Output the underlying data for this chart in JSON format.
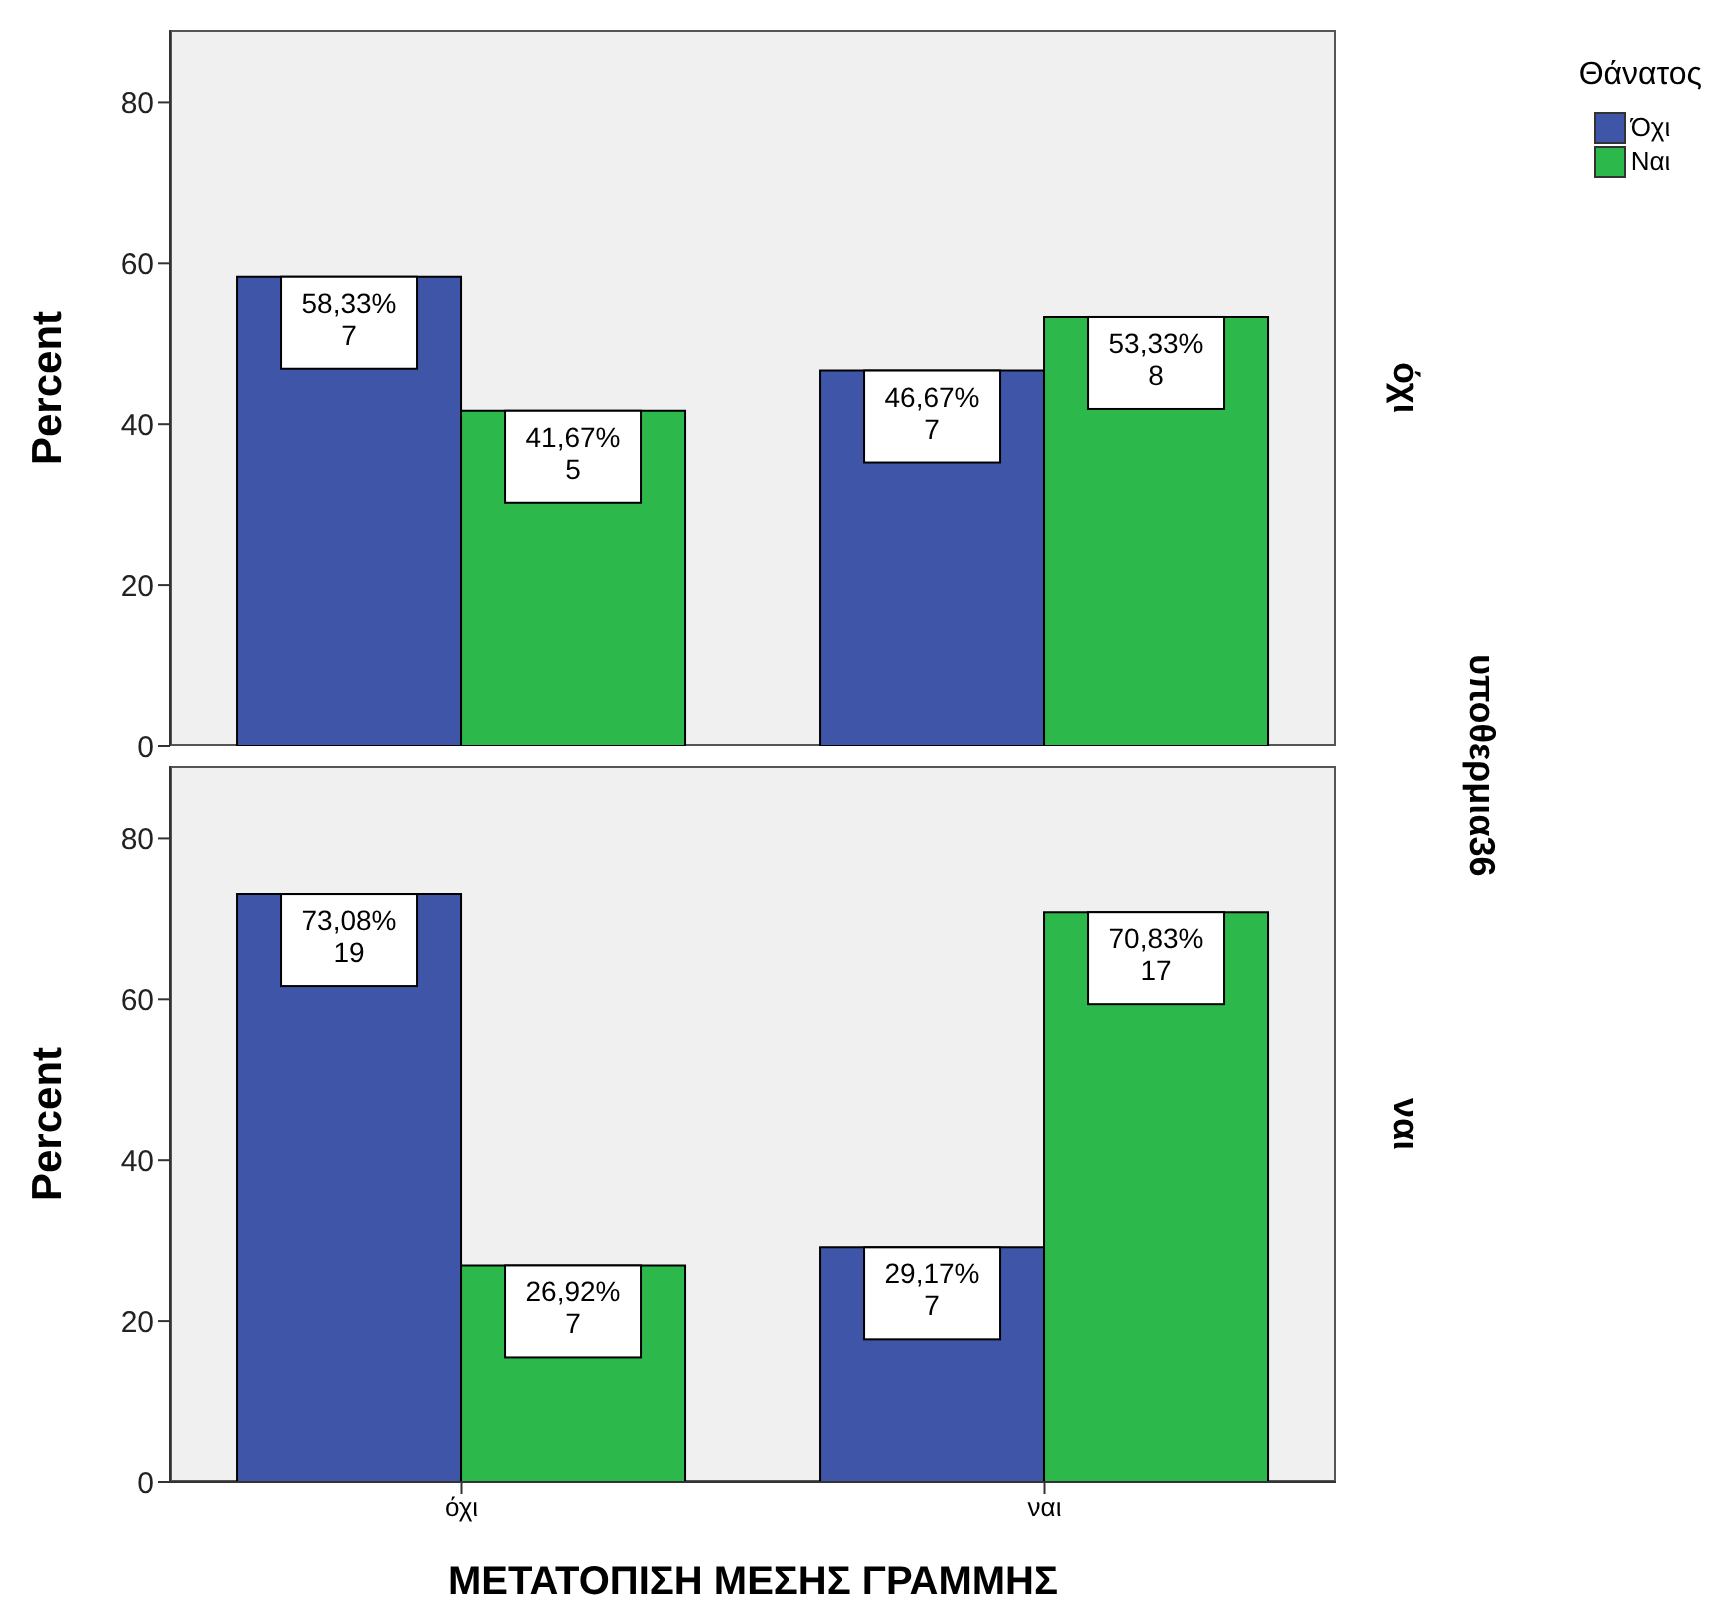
{
  "chart_data": [
    {
      "type": "bar",
      "ylabel": "Percent",
      "legend_title": "Θάνατος",
      "legend": "top right",
      "annotations": [
        "όχι",
        "υποθερμια36"
      ],
      "tick_labels": "y",
      "categories": [
        null,
        null
      ],
      "ylim": [
        0,
        89
      ],
      "yticks": [
        0,
        20,
        40,
        60,
        80
      ],
      "series": [
        {
          "name": "Όχι",
          "color": "#3e55a8",
          "values": [
            58.33,
            46.67
          ],
          "value_labels": [
            "58,33%\n7",
            "46,67%\n7"
          ]
        },
        {
          "name": "Ναι",
          "color": "#2db84b",
          "values": [
            41.67,
            53.33
          ],
          "value_labels": [
            "41,67%\n5",
            "53,33%\n8"
          ]
        }
      ]
    },
    {
      "type": "bar",
      "annotations": [
        "ναι"
      ],
      "ylabel": "Percent",
      "xlabel": "ΜΕΤΑΤΟΠΙΣΗ ΜΕΣΗΣ ΓΡΑΜΜΗΣ",
      "categories": [
        "όχι",
        "ναι"
      ],
      "ylim": [
        0,
        89
      ],
      "yticks": [
        0,
        20,
        40,
        60,
        80
      ],
      "series": [
        {
          "color": "#3e55a8",
          "values": [
            73.08,
            29.17
          ],
          "value_labels": [
            "73,08%\n19",
            "29,17%\n7"
          ]
        },
        {
          "color": "#2db84b",
          "values": [
            26.92,
            70.83
          ],
          "value_labels": [
            "26,92%\n7",
            "70,83%\n17"
          ]
        }
      ]
    }
  ]
}
